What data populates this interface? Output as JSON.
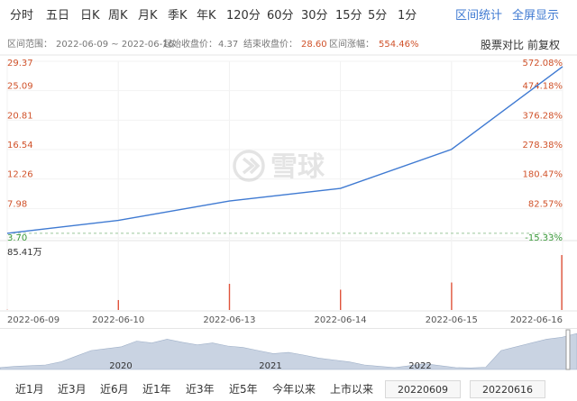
{
  "toolbar": {
    "periods": [
      "分时",
      "五日",
      "日K",
      "周K",
      "月K",
      "季K",
      "年K",
      "120分",
      "60分",
      "30分",
      "15分",
      "5分",
      "1分"
    ],
    "range_stats": "区间统计",
    "fullscreen": "全屏显示"
  },
  "infobar": {
    "range_label": "区间范围：",
    "range_value": "2022-06-09 ~ 2022-06-16",
    "start_label": "起始收盘价：",
    "start_value": "4.37",
    "end_label": "结束收盘价：",
    "end_value": "28.60",
    "change_label": "区间涨幅：",
    "change_value": "554.46%",
    "compare": "股票对比",
    "adjust": "前复权"
  },
  "watermark": "雪球",
  "chart_data": {
    "type": "line",
    "x": [
      "2022-06-09",
      "2022-06-10",
      "2022-06-13",
      "2022-06-14",
      "2022-06-15",
      "2022-06-16"
    ],
    "series": [
      {
        "values": [
          4.37,
          6.25,
          9.06,
          10.9,
          16.57,
          28.6
        ]
      }
    ],
    "ylim": [
      3.7,
      29.37
    ],
    "y_ticks": [
      {
        "value": 29.37,
        "label": "29.37",
        "pct": "572.08%"
      },
      {
        "value": 25.09,
        "label": "25.09",
        "pct": "474.18%"
      },
      {
        "value": 20.81,
        "label": "20.81",
        "pct": "376.28%"
      },
      {
        "value": 16.54,
        "label": "16.54",
        "pct": "278.38%"
      },
      {
        "value": 12.26,
        "label": "12.26",
        "pct": "180.47%"
      },
      {
        "value": 7.98,
        "label": "7.98",
        "pct": "82.57%"
      },
      {
        "value": 3.7,
        "label": "3.70",
        "pct": "-15.33%"
      }
    ],
    "baseline": 4.37,
    "volume": {
      "max_label": "85.41万",
      "max": 85.41,
      "values": [
        0.4,
        15.2,
        40.0,
        31.0,
        42.0,
        84.0
      ]
    },
    "x_tick_labels": [
      "2022-06-09",
      "2022-06-10",
      "2022-06-13",
      "2022-06-14",
      "2022-06-15",
      "2022-06-16"
    ],
    "overview": {
      "year_labels": [
        "2020",
        "2021",
        "2022"
      ],
      "profile": [
        0.05,
        0.08,
        0.1,
        0.12,
        0.2,
        0.35,
        0.5,
        0.55,
        0.6,
        0.75,
        0.7,
        0.8,
        0.72,
        0.65,
        0.7,
        0.62,
        0.58,
        0.5,
        0.42,
        0.45,
        0.38,
        0.3,
        0.25,
        0.2,
        0.12,
        0.08,
        0.05,
        0.1,
        0.15,
        0.1,
        0.05,
        0.04,
        0.06,
        0.5,
        0.6,
        0.7,
        0.8,
        0.85,
        0.95
      ]
    },
    "colors": {
      "line": "#3f7ad2",
      "volume": "#e0533b",
      "up": "#d0522a",
      "down": "#3a9a3a",
      "overview": "#c9d3e2"
    }
  },
  "bottombar": {
    "ranges": [
      "近1月",
      "近3月",
      "近6月",
      "近1年",
      "近3年",
      "近5年",
      "今年以来",
      "上市以来"
    ],
    "start_date": "20220609",
    "end_date": "20220616"
  }
}
